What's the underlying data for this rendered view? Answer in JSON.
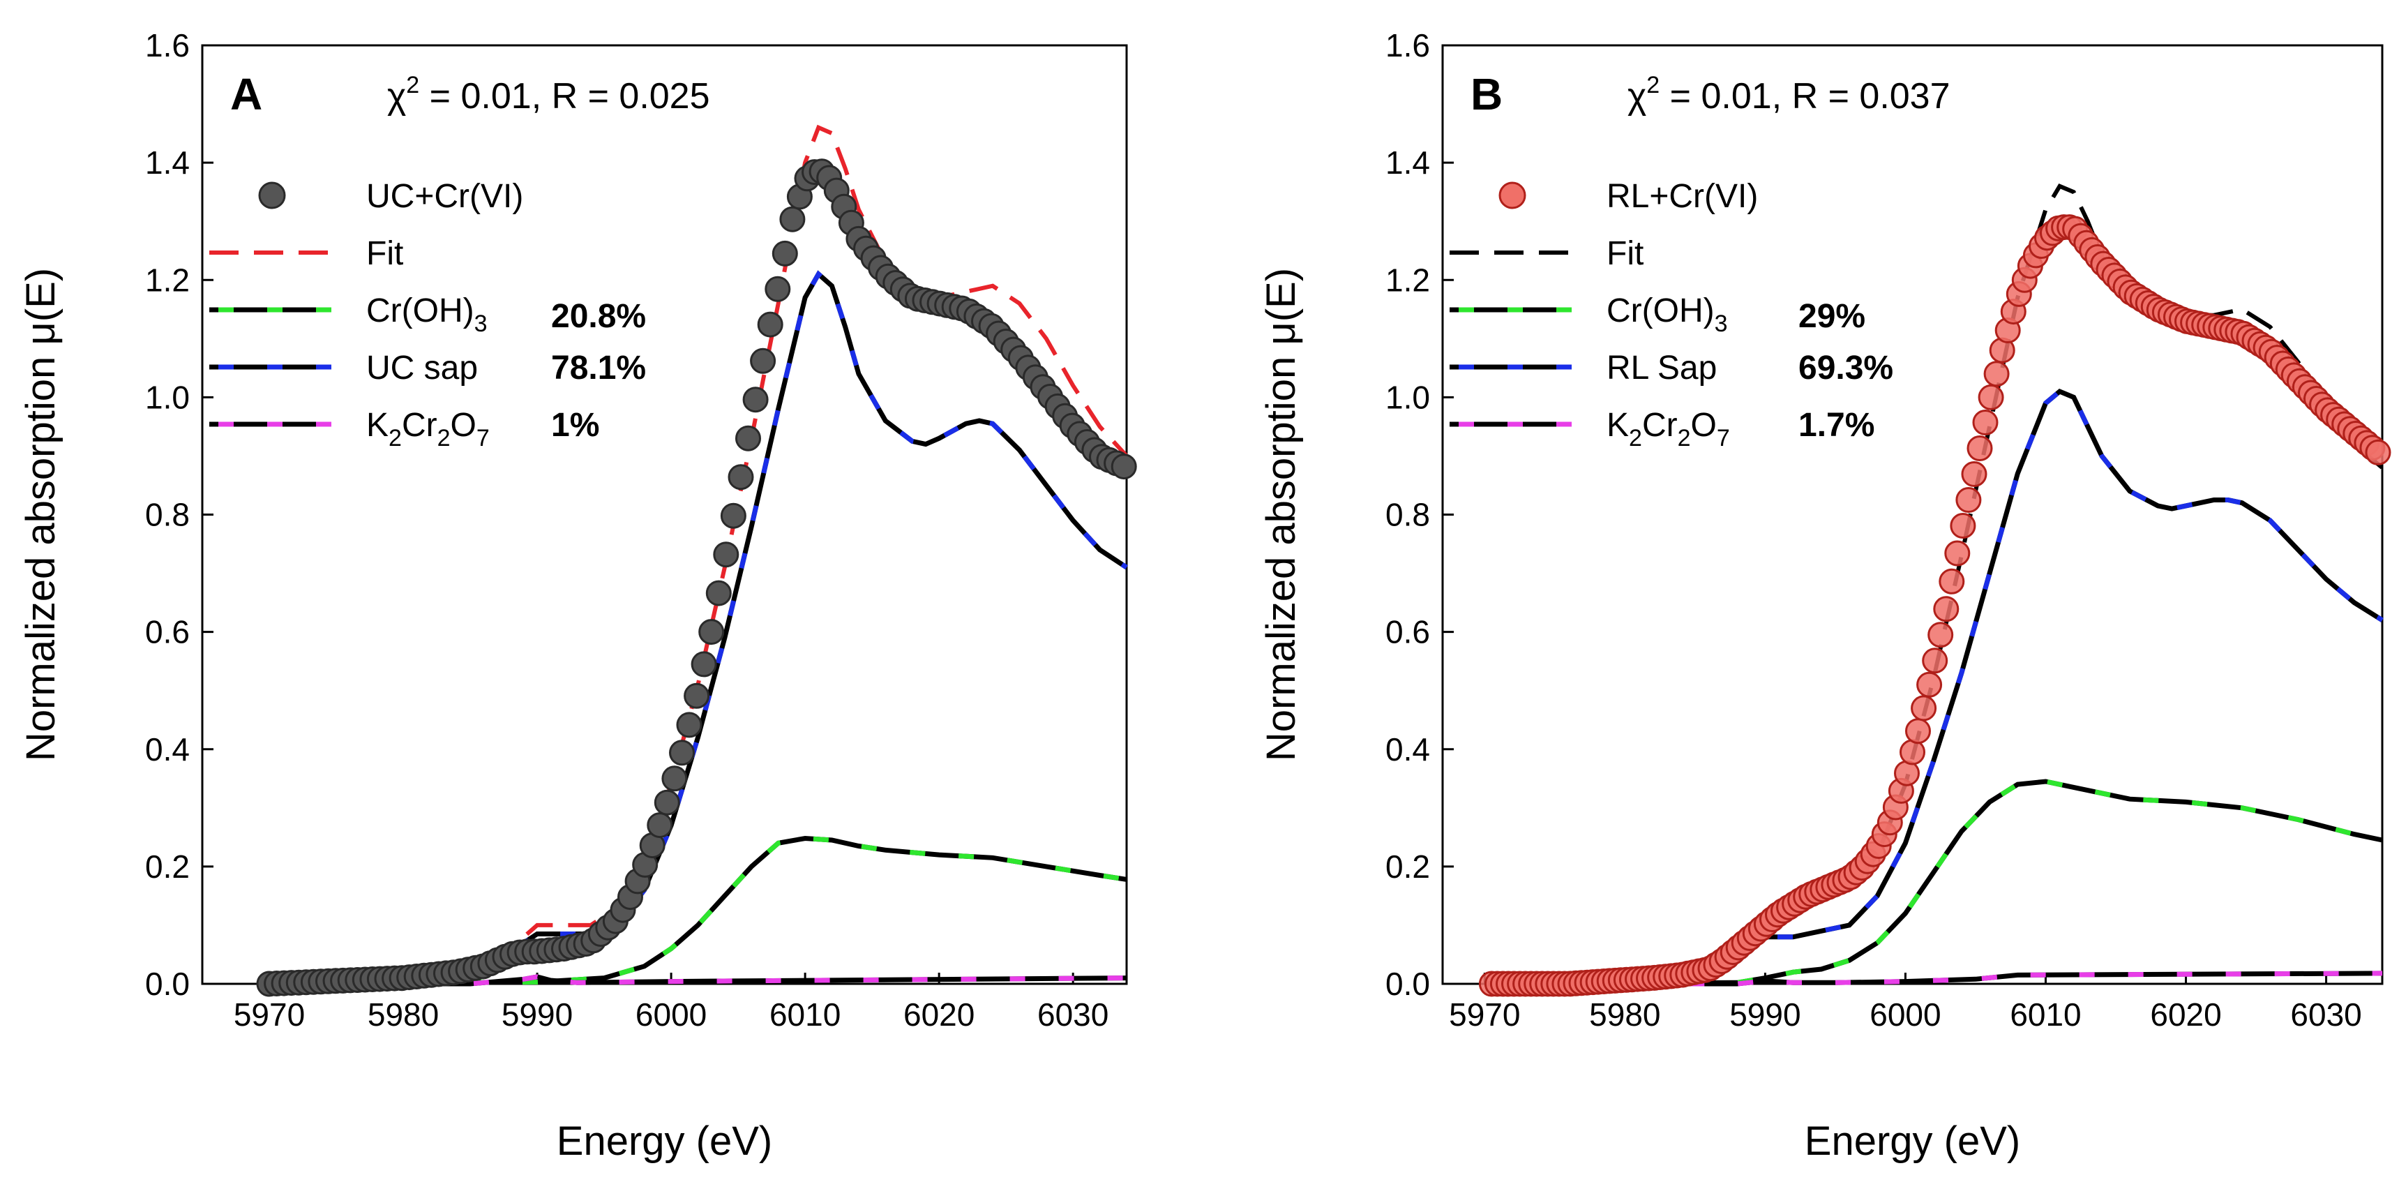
{
  "figure": {
    "x_label": "Energy (eV)",
    "y_label": "Normalized absorption μ(E)"
  },
  "chart_data": [
    {
      "type": "line",
      "panel": "A",
      "stat": "χ² = 0.01, R = 0.025",
      "stat_parts": {
        "chi": "χ",
        "exp": "2",
        "rest": " = 0.01, R = 0.025"
      },
      "xlabel": "Energy (eV)",
      "ylabel": "Normalized absorption μ(E)",
      "xlim": [
        5965,
        6034
      ],
      "ylim": [
        0,
        1.6
      ],
      "xticks": [
        "5970",
        "5980",
        "5990",
        "6000",
        "6010",
        "6020",
        "6030"
      ],
      "yticks": [
        "0.0",
        "0.2",
        "0.4",
        "0.6",
        "0.8",
        "1.0",
        "1.2",
        "1.4",
        "1.6"
      ],
      "colors": {
        "data_fill": "#555555",
        "data_stroke": "#2a2a2a",
        "fit": "#e8242b",
        "cr_oh3": "#2ee62e",
        "sap": "#1a2ee8",
        "k2cr2o7": "#e83ee8"
      },
      "legend": [
        {
          "key": "data",
          "label": "UC+Cr(VI)",
          "pct": ""
        },
        {
          "key": "fit",
          "label": "Fit",
          "pct": ""
        },
        {
          "key": "cr_oh3",
          "label_main": "Cr(OH)",
          "label_sub": "3",
          "label": "Cr(OH)3",
          "pct": "20.8%"
        },
        {
          "key": "sap",
          "label": "UC sap",
          "pct": "78.1%"
        },
        {
          "key": "k2cr2o7",
          "label": "K2Cr2O7",
          "pct": "1%"
        }
      ],
      "series": [
        {
          "name": "UC+Cr(VI)",
          "x": [
            5970,
            5975,
            5980,
            5984,
            5986,
            5987,
            5988,
            5989,
            5990,
            5992,
            5994,
            5995,
            5996,
            5997,
            5998,
            5999,
            6000,
            6001,
            6002,
            6003,
            6004,
            6005,
            6006,
            6007,
            6008,
            6009,
            6010,
            6011,
            6012,
            6013,
            6014,
            6016,
            6018,
            6020,
            6022,
            6024,
            6026,
            6028,
            6030,
            6032,
            6034
          ],
          "values": [
            0.0,
            0.005,
            0.01,
            0.02,
            0.03,
            0.04,
            0.05,
            0.055,
            0.055,
            0.06,
            0.07,
            0.09,
            0.11,
            0.15,
            0.2,
            0.26,
            0.33,
            0.41,
            0.5,
            0.6,
            0.72,
            0.84,
            0.96,
            1.08,
            1.19,
            1.3,
            1.37,
            1.39,
            1.37,
            1.32,
            1.27,
            1.21,
            1.17,
            1.16,
            1.15,
            1.12,
            1.07,
            1.01,
            0.95,
            0.9,
            0.88
          ]
        },
        {
          "name": "Fit",
          "x": [
            5970,
            5980,
            5985,
            5988,
            5990,
            5992,
            5994,
            5996,
            5998,
            6000,
            6002,
            6004,
            6006,
            6008,
            6010,
            6011,
            6012,
            6013,
            6014,
            6016,
            6018,
            6020,
            6022,
            6024,
            6026,
            6028,
            6030,
            6032,
            6034
          ],
          "values": [
            0.0,
            0.01,
            0.03,
            0.06,
            0.1,
            0.1,
            0.1,
            0.13,
            0.21,
            0.34,
            0.51,
            0.71,
            0.93,
            1.16,
            1.4,
            1.46,
            1.45,
            1.39,
            1.32,
            1.23,
            1.18,
            1.17,
            1.18,
            1.19,
            1.16,
            1.1,
            1.02,
            0.95,
            0.9
          ]
        },
        {
          "name": "Cr(OH)3",
          "x": [
            5970,
            5990,
            5995,
            5998,
            6000,
            6002,
            6004,
            6006,
            6008,
            6010,
            6012,
            6014,
            6016,
            6020,
            6024,
            6028,
            6032,
            6034
          ],
          "values": [
            0.0,
            0.003,
            0.01,
            0.03,
            0.06,
            0.1,
            0.15,
            0.2,
            0.24,
            0.248,
            0.245,
            0.235,
            0.228,
            0.22,
            0.215,
            0.2,
            0.185,
            0.178
          ]
        },
        {
          "name": "UC sap",
          "x": [
            5970,
            5985,
            5988,
            5989,
            5990,
            5992,
            5994,
            5996,
            5998,
            6000,
            6002,
            6004,
            6006,
            6008,
            6010,
            6011,
            6012,
            6013,
            6014,
            6016,
            6018,
            6019,
            6020,
            6022,
            6023,
            6024,
            6026,
            6028,
            6030,
            6032,
            6034
          ],
          "values": [
            0.0,
            0.02,
            0.05,
            0.07,
            0.085,
            0.085,
            0.085,
            0.1,
            0.16,
            0.27,
            0.42,
            0.59,
            0.78,
            0.98,
            1.17,
            1.21,
            1.19,
            1.12,
            1.04,
            0.96,
            0.925,
            0.92,
            0.93,
            0.955,
            0.96,
            0.955,
            0.91,
            0.85,
            0.79,
            0.74,
            0.71
          ]
        },
        {
          "name": "K2Cr2O7",
          "x": [
            5970,
            5985,
            5989,
            5990,
            5991,
            5993,
            6000,
            6034
          ],
          "values": [
            0.0,
            0.0,
            0.008,
            0.012,
            0.006,
            0.002,
            0.004,
            0.01
          ]
        }
      ]
    },
    {
      "type": "line",
      "panel": "B",
      "stat": "χ² = 0.01, R = 0.037",
      "stat_parts": {
        "chi": "χ",
        "exp": "2",
        "rest": " = 0.01, R = 0.037"
      },
      "xlabel": "Energy (eV)",
      "ylabel": "Normalized absorption μ(E)",
      "xlim": [
        5967,
        6034
      ],
      "ylim": [
        0,
        1.6
      ],
      "xticks": [
        "5970",
        "5980",
        "5990",
        "6000",
        "6010",
        "6020",
        "6030"
      ],
      "yticks": [
        "0.0",
        "0.2",
        "0.4",
        "0.6",
        "0.8",
        "1.0",
        "1.2",
        "1.4",
        "1.6"
      ],
      "colors": {
        "data_fill": "#f07068",
        "data_stroke": "#b0201a",
        "fit": "#000000",
        "cr_oh3": "#2ee62e",
        "sap": "#1a2ee8",
        "k2cr2o7": "#e83ee8"
      },
      "legend": [
        {
          "key": "data",
          "label": "RL+Cr(VI)",
          "pct": ""
        },
        {
          "key": "fit",
          "label": "Fit",
          "pct": ""
        },
        {
          "key": "cr_oh3",
          "label_main": "Cr(OH)",
          "label_sub": "3",
          "label": "Cr(OH)3",
          "pct": "29%"
        },
        {
          "key": "sap",
          "label": "RL Sap",
          "pct": "69.3%"
        },
        {
          "key": "k2cr2o7",
          "label": "K2Cr2O7",
          "pct": "1.7%"
        }
      ],
      "series": [
        {
          "name": "RL+Cr(VI)",
          "x": [
            5970.5,
            5973,
            5976,
            5979,
            5982,
            5984,
            5986,
            5987,
            5988,
            5989,
            5990,
            5991,
            5992,
            5993,
            5994,
            5995,
            5996,
            5997,
            5998,
            5999,
            6000,
            6001,
            6002,
            6003,
            6004,
            6005,
            6006,
            6007,
            6008,
            6009,
            6010,
            6011,
            6012,
            6013,
            6014,
            6016,
            6018,
            6020,
            6022,
            6024,
            6026,
            6028,
            6030,
            6032,
            6034
          ],
          "values": [
            0.0,
            0.0,
            0.0,
            0.005,
            0.01,
            0.015,
            0.025,
            0.04,
            0.06,
            0.08,
            0.1,
            0.12,
            0.135,
            0.15,
            0.16,
            0.17,
            0.18,
            0.2,
            0.23,
            0.28,
            0.35,
            0.44,
            0.54,
            0.65,
            0.77,
            0.88,
            0.99,
            1.09,
            1.17,
            1.23,
            1.27,
            1.29,
            1.29,
            1.26,
            1.23,
            1.18,
            1.15,
            1.13,
            1.12,
            1.11,
            1.08,
            1.03,
            0.98,
            0.94,
            0.9
          ]
        },
        {
          "name": "Fit",
          "x": [
            5970,
            5985,
            5988,
            5990,
            5992,
            5994,
            5996,
            5998,
            6000,
            6002,
            6004,
            6006,
            6008,
            6010,
            6011,
            6012,
            6013,
            6014,
            6016,
            6018,
            6020,
            6022,
            6024,
            6026,
            6028,
            6030,
            6032,
            6034
          ],
          "values": [
            0.0,
            0.02,
            0.05,
            0.1,
            0.13,
            0.15,
            0.16,
            0.22,
            0.34,
            0.52,
            0.73,
            0.95,
            1.17,
            1.32,
            1.36,
            1.35,
            1.3,
            1.24,
            1.18,
            1.15,
            1.14,
            1.14,
            1.15,
            1.12,
            1.06,
            0.99,
            0.92,
            0.88
          ]
        },
        {
          "name": "Cr(OH)3",
          "x": [
            5970,
            5988,
            5990,
            5992,
            5994,
            5996,
            5998,
            6000,
            6002,
            6004,
            6006,
            6008,
            6010,
            6012,
            6014,
            6016,
            6020,
            6024,
            6028,
            6032,
            6034
          ],
          "values": [
            0.0,
            0.002,
            0.01,
            0.02,
            0.025,
            0.04,
            0.07,
            0.12,
            0.19,
            0.26,
            0.31,
            0.34,
            0.345,
            0.335,
            0.325,
            0.315,
            0.31,
            0.3,
            0.28,
            0.255,
            0.245
          ]
        },
        {
          "name": "RL Sap",
          "x": [
            5970,
            5985,
            5988,
            5989,
            5990,
            5992,
            5994,
            5996,
            5998,
            6000,
            6002,
            6004,
            6006,
            6008,
            6010,
            6011,
            6012,
            6013,
            6014,
            6016,
            6018,
            6019,
            6020,
            6022,
            6023,
            6024,
            6026,
            6028,
            6030,
            6032,
            6034
          ],
          "values": [
            0.0,
            0.02,
            0.05,
            0.07,
            0.08,
            0.08,
            0.09,
            0.1,
            0.15,
            0.24,
            0.38,
            0.53,
            0.7,
            0.87,
            0.99,
            1.01,
            1.0,
            0.95,
            0.9,
            0.84,
            0.815,
            0.81,
            0.815,
            0.825,
            0.825,
            0.82,
            0.79,
            0.74,
            0.69,
            0.65,
            0.62
          ]
        },
        {
          "name": "K2Cr2O7",
          "x": [
            5970,
            5988,
            5990,
            5992,
            5995,
            6000,
            6005,
            6008,
            6034
          ],
          "values": [
            0.0,
            0.0,
            0.005,
            0.002,
            0.002,
            0.004,
            0.008,
            0.015,
            0.018
          ]
        }
      ]
    }
  ]
}
